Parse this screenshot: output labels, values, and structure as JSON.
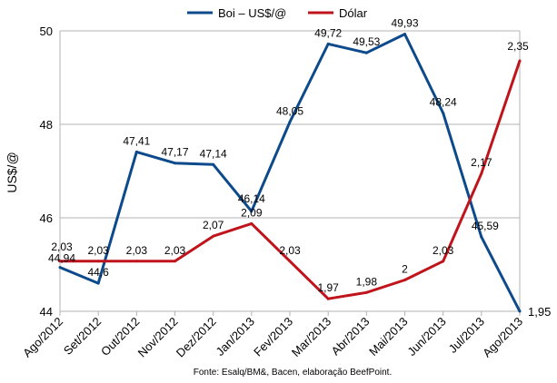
{
  "chart_data": {
    "type": "line",
    "categories": [
      "Ago/2012",
      "Set/2012",
      "Out/2012",
      "Nov/2012",
      "Dez/2012",
      "Jan/2013",
      "Fev/2013",
      "Mar/2013",
      "Abr/2013",
      "Mai/2013",
      "Jun/2013",
      "Jul/2013",
      "Ago/2013"
    ],
    "series": [
      {
        "name": "Boi – US$/@",
        "axis": "left",
        "color": "#0c4a8b",
        "values": [
          44.94,
          44.6,
          47.41,
          47.17,
          47.14,
          46.14,
          48.05,
          49.72,
          49.53,
          49.93,
          48.24,
          45.59,
          44.0
        ],
        "labels": [
          "44,94",
          "44,6",
          "47,41",
          "47,17",
          "47,14",
          "46,14",
          "48,05",
          "49,72",
          "49,53",
          "49,93",
          "48,24",
          "45,59",
          ""
        ]
      },
      {
        "name": "Dólar",
        "axis": "right",
        "color": "#c0141c",
        "values": [
          2.03,
          2.03,
          2.03,
          2.03,
          2.07,
          2.09,
          2.03,
          1.97,
          1.98,
          2.0,
          2.03,
          2.17,
          2.35
        ],
        "labels": [
          "2,03",
          "2,03",
          "2,03",
          "2,03",
          "2,07",
          "2,09",
          "2,03",
          "1,97",
          "1,98",
          "2",
          "2,03",
          "2,17",
          "2,35"
        ]
      }
    ],
    "ylabel": "US$/@",
    "ylim": [
      44,
      50
    ],
    "yticks": [
      "44",
      "46",
      "48",
      "50"
    ],
    "right_axis_label": "1,95",
    "legend_position": "top",
    "grid": true,
    "source": "Fonte: Esalq/BM&, Bacen, elaboração BeefPoint."
  }
}
